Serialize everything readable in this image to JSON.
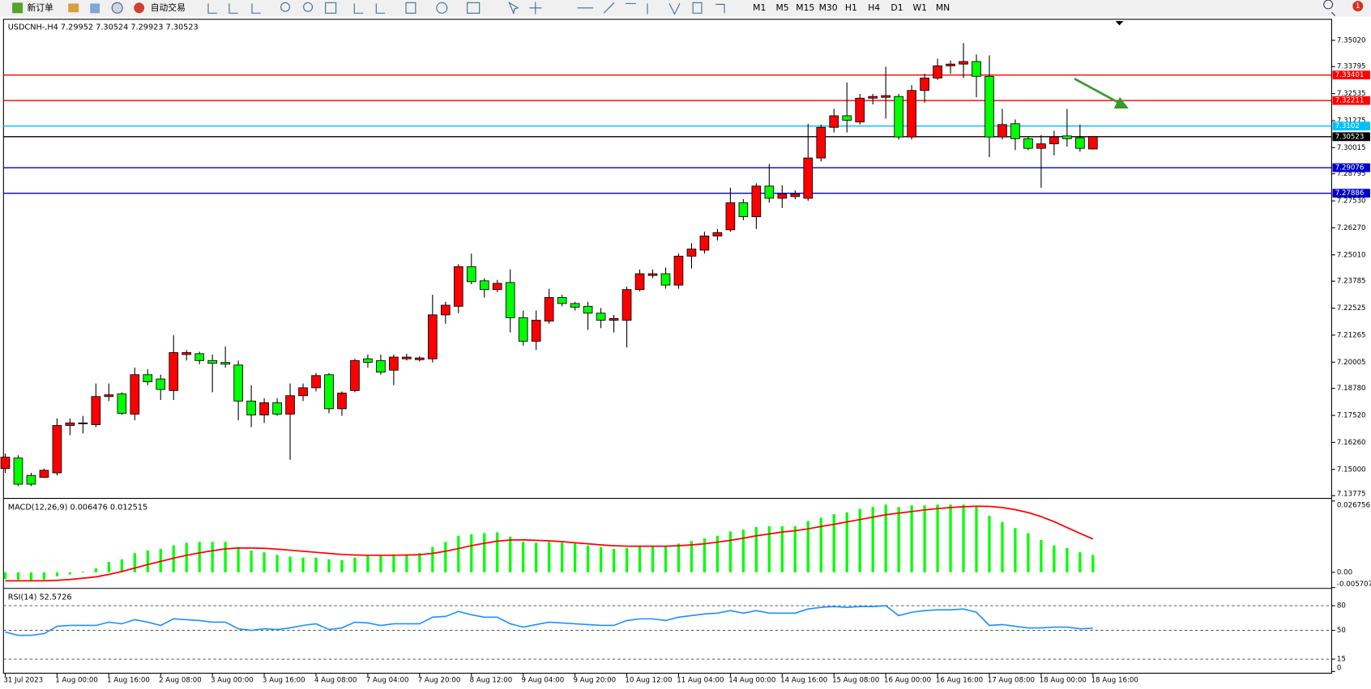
{
  "toolbar": {
    "new_order": "新订单",
    "auto_trading": "自动交易",
    "timeframes": [
      "M1",
      "M5",
      "M15",
      "M30",
      "H1",
      "H4",
      "D1",
      "W1",
      "MN"
    ],
    "notification": 1
  },
  "chart_data": [
    {
      "type": "candlestick",
      "title": "USDCNH-,H4",
      "header_values": [
        7.29952,
        7.30524,
        7.29923,
        7.30523
      ],
      "categories": [
        "31 Jul 2023",
        null,
        null,
        null,
        "1 Aug 00:00",
        null,
        null,
        null,
        "1 Aug 16:00",
        null,
        null,
        null,
        "2 Aug 08:00",
        null,
        null,
        null,
        "3 Aug 00:00",
        null,
        null,
        null,
        "3 Aug 16:00",
        null,
        null,
        null,
        "4 Aug 08:00",
        null,
        null,
        null,
        "7 Aug 04:00",
        null,
        null,
        null,
        "7 Aug 20:00",
        null,
        null,
        null,
        "8 Aug 12:00",
        null,
        null,
        null,
        "9 Aug 04:00",
        null,
        null,
        null,
        "9 Aug 20:00",
        null,
        null,
        null,
        "10 Aug 12:00",
        null,
        null,
        null,
        "11 Aug 04:00",
        null,
        null,
        null,
        "14 Aug 00:00",
        null,
        null,
        null,
        "14 Aug 16:00",
        null,
        null,
        null,
        "15 Aug 08:00",
        null,
        null,
        null,
        "16 Aug 00:00",
        null,
        null,
        null,
        "16 Aug 16:00",
        null,
        null,
        null,
        "17 Aug 08:00",
        null,
        null,
        null,
        "18 Aug 00:00",
        null,
        null,
        null,
        "18 Aug 16:00"
      ],
      "open": [
        7.1504,
        7.1553,
        7.1472,
        7.1463,
        7.1484,
        7.1705,
        7.1713,
        7.1709,
        7.184,
        7.1852,
        7.1758,
        7.1942,
        7.1922,
        7.1868,
        7.2036,
        7.204,
        7.2008,
        7.1999,
        7.1987,
        7.1819,
        7.1754,
        7.1811,
        7.1758,
        7.1844,
        7.1881,
        7.1942,
        7.1783,
        7.1868,
        7.2016,
        7.2008,
        7.1963,
        7.2016,
        7.2012,
        7.2016,
        7.2221,
        7.2261,
        7.2446,
        7.238,
        7.2339,
        7.2372,
        7.2208,
        7.2098,
        7.2192,
        7.2302,
        7.2274,
        7.2261,
        7.2229,
        7.2196,
        7.2196,
        7.2339,
        7.2405,
        7.2413,
        7.236,
        7.2495,
        7.2523,
        7.2589,
        7.2618,
        7.2744,
        7.2679,
        7.2822,
        7.2765,
        7.2773,
        7.2765,
        7.2953,
        7.3096,
        7.315,
        7.3121,
        7.3232,
        7.3236,
        7.324,
        7.3051,
        7.3268,
        7.3326,
        7.3383,
        7.3391,
        7.3403,
        7.3334,
        7.3051,
        7.3113,
        7.3043,
        7.2998,
        7.3019,
        7.3056,
        7.3047,
        7.29952
      ],
      "high": [
        7.1574,
        7.1566,
        7.1484,
        7.1504,
        7.1738,
        7.1738,
        7.175,
        7.1901,
        7.1901,
        7.186,
        7.1975,
        7.1967,
        7.1942,
        7.2126,
        7.2057,
        7.2049,
        7.2036,
        7.2073,
        7.2008,
        7.1893,
        7.1832,
        7.1832,
        7.1901,
        7.1901,
        7.195,
        7.195,
        7.1864,
        7.2016,
        7.2036,
        7.2036,
        7.2036,
        7.204,
        7.2028,
        7.2315,
        7.2282,
        7.2458,
        7.2507,
        7.2392,
        7.2384,
        7.2433,
        7.2241,
        7.2241,
        7.2343,
        7.2315,
        7.2282,
        7.2282,
        7.2253,
        7.2221,
        7.2352,
        7.2433,
        7.2433,
        7.2442,
        7.2507,
        7.2556,
        7.2609,
        7.2622,
        7.2814,
        7.2761,
        7.2835,
        7.2925,
        7.2826,
        7.2802,
        7.3113,
        7.3109,
        7.3182,
        7.3305,
        7.3252,
        7.3252,
        7.3379,
        7.3252,
        7.3293,
        7.3346,
        7.3416,
        7.3408,
        7.3489,
        7.3436,
        7.3432,
        7.3182,
        7.3133,
        7.3051,
        7.306,
        7.308,
        7.3182,
        7.3109,
        7.30524
      ],
      "low": [
        7.1484,
        7.1422,
        7.1422,
        7.146,
        7.1472,
        7.166,
        7.1668,
        7.1697,
        7.1819,
        7.1754,
        7.1729,
        7.1893,
        7.1824,
        7.1824,
        7.2008,
        7.1991,
        7.186,
        7.1975,
        7.1729,
        7.1697,
        7.1717,
        7.175,
        7.1545,
        7.1819,
        7.1864,
        7.1762,
        7.175,
        7.186,
        7.1975,
        7.1942,
        7.1893,
        7.2008,
        7.2004,
        7.1999,
        7.218,
        7.2229,
        7.2364,
        7.2302,
        7.2327,
        7.2139,
        7.2077,
        7.2057,
        7.218,
        7.2261,
        7.2241,
        7.2151,
        7.2159,
        7.2139,
        7.2069,
        7.2331,
        7.2392,
        7.2343,
        7.2343,
        7.2437,
        7.2507,
        7.2568,
        7.2609,
        7.2663,
        7.2622,
        7.2744,
        7.272,
        7.2761,
        7.2753,
        7.2937,
        7.3072,
        7.3072,
        7.3109,
        7.3203,
        7.3137,
        7.3039,
        7.3039,
        7.3211,
        7.3317,
        7.3346,
        7.3326,
        7.3236,
        7.2957,
        7.3039,
        7.299,
        7.299,
        7.2814,
        7.2965,
        7.3006,
        7.2982,
        7.29923
      ],
      "close": [
        7.1557,
        7.1431,
        7.1431,
        7.1496,
        7.1705,
        7.1717,
        7.1717,
        7.184,
        7.1848,
        7.1762,
        7.1942,
        7.1909,
        7.1873,
        7.2045,
        7.2045,
        7.2008,
        7.1995,
        7.1991,
        7.1819,
        7.1754,
        7.1811,
        7.1758,
        7.1844,
        7.1881,
        7.1938,
        7.1783,
        7.1856,
        7.2008,
        7.1999,
        7.1954,
        7.2024,
        7.2024,
        7.202,
        7.2221,
        7.2266,
        7.2446,
        7.2376,
        7.2339,
        7.2368,
        7.2208,
        7.2098,
        7.2196,
        7.2302,
        7.2274,
        7.2257,
        7.2229,
        7.2196,
        7.2204,
        7.2339,
        7.2413,
        7.2413,
        7.236,
        7.2495,
        7.2528,
        7.2589,
        7.2605,
        7.2744,
        7.2679,
        7.2822,
        7.2765,
        7.2785,
        7.2785,
        7.2953,
        7.3096,
        7.315,
        7.3129,
        7.3232,
        7.324,
        7.3244,
        7.3051,
        7.3268,
        7.3326,
        7.3383,
        7.3391,
        7.3403,
        7.3334,
        7.3051,
        7.3109,
        7.3043,
        7.2998,
        7.3019,
        7.3051,
        7.3043,
        7.2998,
        7.30523
      ],
      "up_color": "#ff0000",
      "down_color": "#00ff00",
      "ylim": [
        7.1369,
        7.3596
      ],
      "yticks": [
        {
          "value": 7.3502,
          "label": "7.35020"
        },
        {
          "value": 7.33795,
          "label": "7.33795"
        },
        {
          "value": 7.32535,
          "label": "7.32535"
        },
        {
          "value": 7.31275,
          "label": "7.31275"
        },
        {
          "value": 7.30015,
          "label": "7.30015"
        },
        {
          "value": 7.28795,
          "label": "7.28795"
        },
        {
          "value": 7.2753,
          "label": "7.27530"
        },
        {
          "value": 7.2627,
          "label": "7.26270"
        },
        {
          "value": 7.2501,
          "label": "7.25010"
        },
        {
          "value": 7.23785,
          "label": "7.23785"
        },
        {
          "value": 7.22525,
          "label": "7.22525"
        },
        {
          "value": 7.21265,
          "label": "7.21265"
        },
        {
          "value": 7.20005,
          "label": "7.20005"
        },
        {
          "value": 7.1878,
          "label": "7.18780"
        },
        {
          "value": 7.1752,
          "label": "7.17520"
        },
        {
          "value": 7.1626,
          "label": "7.16260"
        },
        {
          "value": 7.15,
          "label": "7.15000"
        },
        {
          "value": 7.13775,
          "label": "7.13775"
        }
      ],
      "hlines": [
        {
          "value": 7.33401,
          "color": "#ff0000"
        },
        {
          "value": 7.32211,
          "color": "#ff0000"
        },
        {
          "value": 7.3102,
          "color": "#00bfff"
        },
        {
          "value": 7.30523,
          "color": "#000000"
        },
        {
          "value": 7.29076,
          "color": "#0000cd"
        },
        {
          "value": 7.27886,
          "color": "#0000cd"
        }
      ]
    },
    {
      "type": "macd",
      "title": "MACD(12,26,9)",
      "header_values": [
        0.006476,
        0.012515
      ],
      "histogram": {
        "color": "#00ff00",
        "values": [
          -0.0025,
          -0.0028,
          -0.003,
          -0.0028,
          -0.0015,
          -0.0008,
          0.0003,
          0.0015,
          0.0039,
          0.0049,
          0.0072,
          0.0082,
          0.0088,
          0.0101,
          0.0111,
          0.0114,
          0.0114,
          0.0114,
          0.0095,
          0.0082,
          0.0075,
          0.0065,
          0.0059,
          0.0055,
          0.0055,
          0.0049,
          0.0046,
          0.0055,
          0.0062,
          0.0065,
          0.0068,
          0.0068,
          0.0072,
          0.0095,
          0.0114,
          0.0137,
          0.0143,
          0.0147,
          0.015,
          0.0134,
          0.0114,
          0.0111,
          0.0114,
          0.0111,
          0.0108,
          0.0101,
          0.0095,
          0.0088,
          0.0091,
          0.0098,
          0.0098,
          0.0098,
          0.0108,
          0.0117,
          0.0127,
          0.0137,
          0.0153,
          0.016,
          0.017,
          0.0173,
          0.0173,
          0.0173,
          0.0192,
          0.0205,
          0.0218,
          0.0225,
          0.0238,
          0.0245,
          0.0254,
          0.0245,
          0.0251,
          0.0251,
          0.0254,
          0.0254,
          0.0254,
          0.0245,
          0.0212,
          0.0189,
          0.0166,
          0.0147,
          0.0121,
          0.0101,
          0.0091,
          0.0075,
          0.006476
        ]
      },
      "signal": {
        "color": "#ff0000",
        "values": [
          -0.0032,
          -0.0032,
          -0.0032,
          -0.0032,
          -0.003,
          -0.0027,
          -0.0022,
          -0.0017,
          -0.0008,
          0.0003,
          0.0016,
          0.0029,
          0.0041,
          0.0053,
          0.0064,
          0.0073,
          0.0081,
          0.0088,
          0.0091,
          0.0091,
          0.009,
          0.0087,
          0.0083,
          0.0079,
          0.0075,
          0.0071,
          0.0067,
          0.0065,
          0.0064,
          0.0064,
          0.0064,
          0.0065,
          0.0066,
          0.0071,
          0.0079,
          0.0089,
          0.01,
          0.0109,
          0.0117,
          0.0121,
          0.0122,
          0.012,
          0.0118,
          0.0115,
          0.0111,
          0.0107,
          0.0103,
          0.01,
          0.0098,
          0.0098,
          0.0098,
          0.0098,
          0.01,
          0.0103,
          0.0107,
          0.0113,
          0.012,
          0.0128,
          0.0137,
          0.0144,
          0.0151,
          0.0156,
          0.0163,
          0.0172,
          0.018,
          0.0189,
          0.0198,
          0.0207,
          0.0216,
          0.0222,
          0.0228,
          0.0234,
          0.0239,
          0.0243,
          0.0246,
          0.0248,
          0.0247,
          0.0243,
          0.0235,
          0.0224,
          0.0209,
          0.019,
          0.0168,
          0.0146,
          0.012515
        ]
      },
      "ylim": [
        -0.005707,
        0.026756
      ],
      "yticks": [
        0.026756,
        {
          "value": 0,
          "label": "0.00"
        },
        -0.005707
      ]
    },
    {
      "type": "rsi",
      "title": "RSI(14)",
      "header_values": [
        52.5726
      ],
      "color": "#1e90ff",
      "values": [
        48,
        44,
        44,
        46,
        55,
        56,
        56,
        56,
        60,
        58,
        63,
        60,
        56,
        64,
        63,
        62,
        60,
        60,
        52,
        50,
        52,
        51,
        53,
        56,
        58,
        51,
        53,
        60,
        59,
        56,
        58,
        58,
        58,
        66,
        67,
        73,
        69,
        66,
        66,
        58,
        54,
        57,
        60,
        59,
        58,
        57,
        56,
        56,
        62,
        64,
        64,
        62,
        66,
        68,
        70,
        71,
        74,
        71,
        74,
        71,
        71,
        71,
        76,
        78,
        79,
        78,
        79,
        79,
        80,
        68,
        72,
        74,
        75,
        75,
        76,
        72,
        56,
        57,
        55,
        53,
        53,
        54,
        54,
        52,
        52.5726
      ],
      "ylim": [
        0,
        100
      ],
      "yticks": [
        80,
        50,
        15,
        0
      ],
      "levels": [
        80,
        50,
        15
      ]
    }
  ]
}
